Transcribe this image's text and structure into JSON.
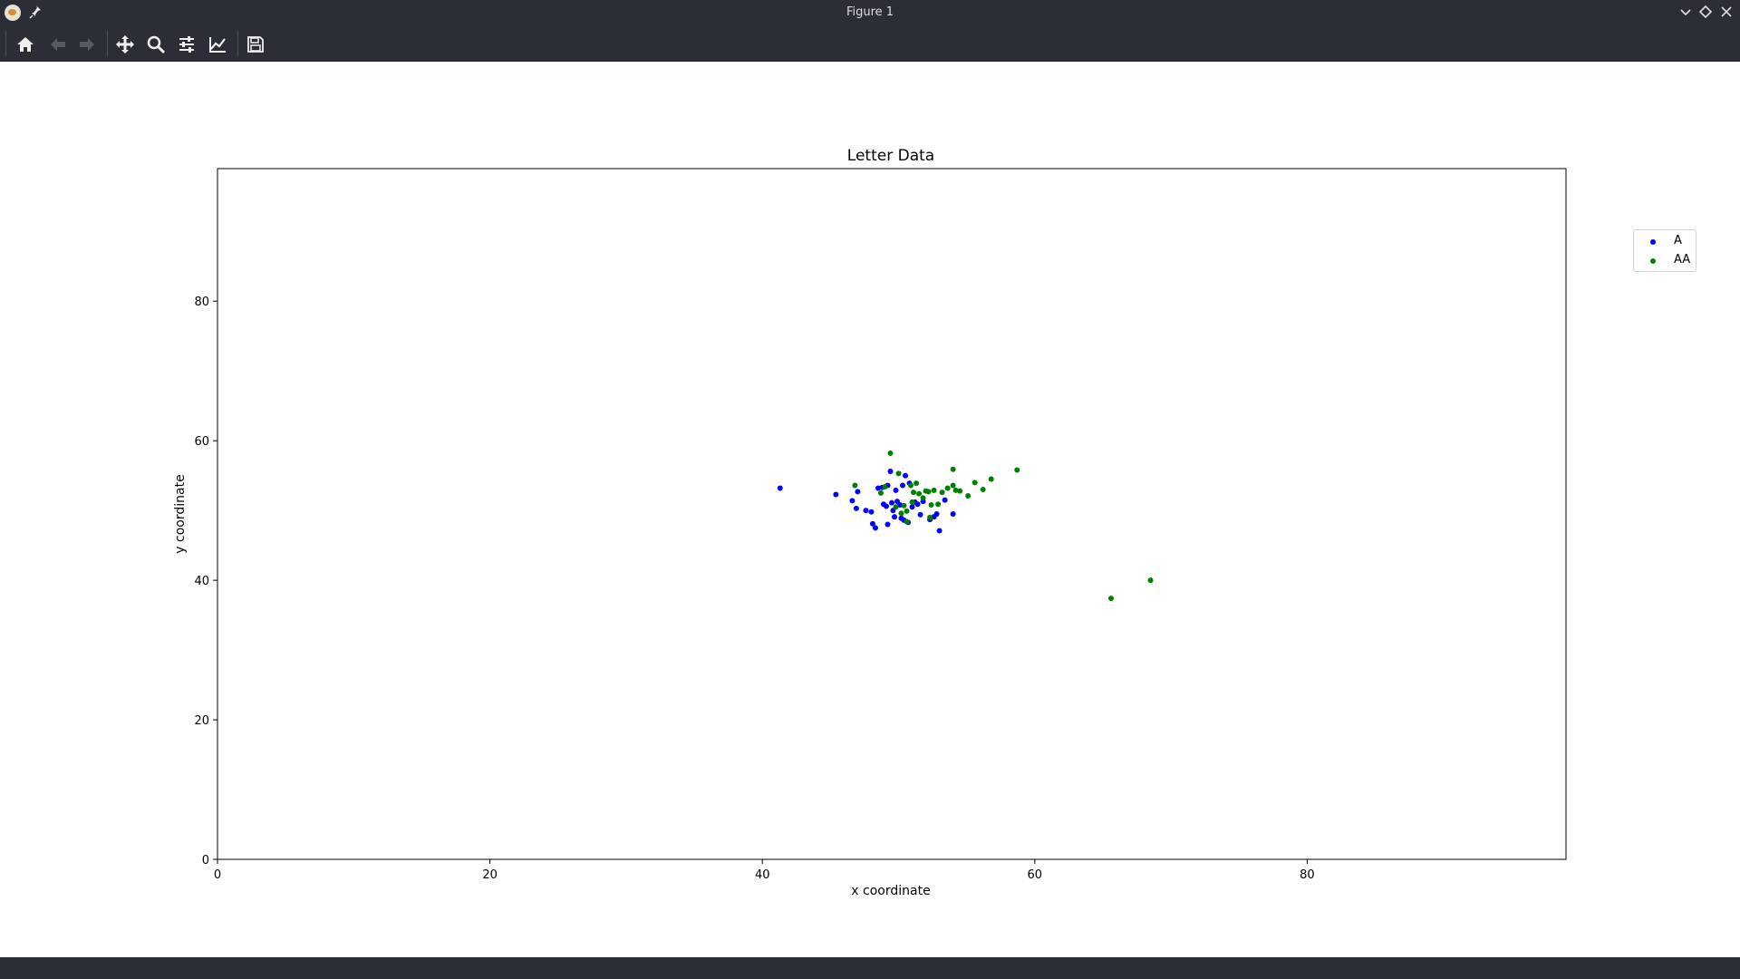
{
  "window": {
    "title": "Figure 1"
  },
  "toolbar": {
    "buttons": [
      {
        "name": "home",
        "icon": "home-icon",
        "enabled": true
      },
      {
        "name": "back",
        "icon": "arrow-left-icon",
        "enabled": false
      },
      {
        "name": "forward",
        "icon": "arrow-right-icon",
        "enabled": false
      },
      {
        "name": "pan",
        "icon": "move-arrows-icon",
        "enabled": true
      },
      {
        "name": "zoom",
        "icon": "magnifier-icon",
        "enabled": true
      },
      {
        "name": "configure-subplots",
        "icon": "sliders-icon",
        "enabled": true
      },
      {
        "name": "edit-axis",
        "icon": "line-chart-icon",
        "enabled": true
      },
      {
        "name": "save",
        "icon": "floppy-disk-icon",
        "enabled": true
      }
    ]
  },
  "chart_data": {
    "type": "scatter",
    "title": "Letter Data",
    "xlabel": "x coordinate",
    "ylabel": "y coordinate",
    "xlim": [
      0,
      99
    ],
    "ylim": [
      0,
      99
    ],
    "xticks": [
      "0",
      "20",
      "40",
      "60",
      "80"
    ],
    "yticks": [
      "0",
      "20",
      "40",
      "60",
      "80"
    ],
    "grid": false,
    "legend_position": "outside-top-right",
    "series": [
      {
        "name": "A",
        "color": "#0000ff",
        "points": [
          [
            41.3,
            53.2
          ],
          [
            45.4,
            52.3
          ],
          [
            46.6,
            51.4
          ],
          [
            46.9,
            50.3
          ],
          [
            47.0,
            52.7
          ],
          [
            47.6,
            50.0
          ],
          [
            48.0,
            49.8
          ],
          [
            48.1,
            48.1
          ],
          [
            48.3,
            47.5
          ],
          [
            48.5,
            53.2
          ],
          [
            48.8,
            53.3
          ],
          [
            48.9,
            50.9
          ],
          [
            49.1,
            50.6
          ],
          [
            49.2,
            53.6
          ],
          [
            49.4,
            55.6
          ],
          [
            49.5,
            51.1
          ],
          [
            49.6,
            50.0
          ],
          [
            49.7,
            49.1
          ],
          [
            49.8,
            52.9
          ],
          [
            49.9,
            51.3
          ],
          [
            50.1,
            50.8
          ],
          [
            50.3,
            53.6
          ],
          [
            50.4,
            48.6
          ],
          [
            50.5,
            55.0
          ],
          [
            50.7,
            48.3
          ],
          [
            50.8,
            53.9
          ],
          [
            51.0,
            50.5
          ],
          [
            51.2,
            51.2
          ],
          [
            51.4,
            50.9
          ],
          [
            51.6,
            49.4
          ],
          [
            51.8,
            51.3
          ],
          [
            52.3,
            48.7
          ],
          [
            52.6,
            49.1
          ],
          [
            52.8,
            49.5
          ],
          [
            53.0,
            47.1
          ],
          [
            53.4,
            51.5
          ],
          [
            54.0,
            49.5
          ],
          [
            49.2,
            48.0
          ],
          [
            50.2,
            48.9
          ]
        ]
      },
      {
        "name": "AA",
        "color": "#008000",
        "points": [
          [
            46.8,
            53.6
          ],
          [
            48.7,
            52.5
          ],
          [
            49.0,
            53.4
          ],
          [
            49.4,
            58.2
          ],
          [
            49.8,
            50.5
          ],
          [
            50.0,
            55.3
          ],
          [
            50.2,
            49.6
          ],
          [
            50.4,
            50.7
          ],
          [
            50.6,
            48.4
          ],
          [
            50.9,
            53.6
          ],
          [
            51.1,
            52.6
          ],
          [
            51.3,
            53.9
          ],
          [
            51.5,
            52.4
          ],
          [
            51.8,
            51.8
          ],
          [
            52.0,
            52.8
          ],
          [
            52.2,
            52.7
          ],
          [
            52.4,
            50.8
          ],
          [
            52.6,
            52.9
          ],
          [
            52.9,
            50.9
          ],
          [
            53.2,
            52.6
          ],
          [
            53.6,
            53.2
          ],
          [
            54.0,
            53.6
          ],
          [
            54.2,
            52.9
          ],
          [
            54.0,
            55.9
          ],
          [
            54.5,
            52.8
          ],
          [
            55.1,
            52.1
          ],
          [
            55.6,
            54.0
          ],
          [
            56.2,
            53.0
          ],
          [
            56.8,
            54.5
          ],
          [
            58.7,
            55.8
          ],
          [
            65.6,
            37.4
          ],
          [
            68.5,
            40.0
          ],
          [
            52.3,
            49.0
          ],
          [
            51.0,
            51.2
          ],
          [
            50.6,
            49.9
          ]
        ]
      }
    ]
  }
}
